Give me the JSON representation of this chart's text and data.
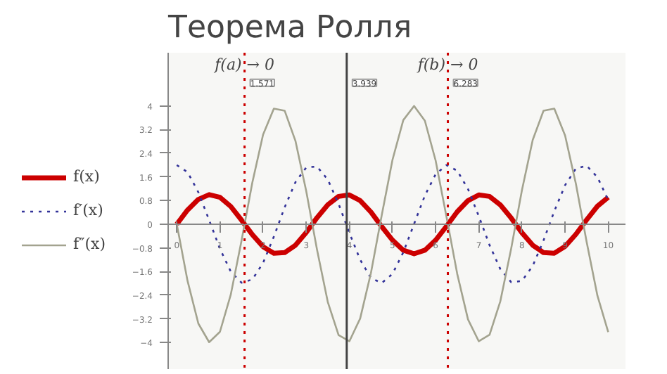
{
  "chart_data": {
    "type": "line",
    "title": "Теорема Ролля",
    "x": [
      0,
      0.25,
      0.5,
      0.75,
      1,
      1.25,
      1.5,
      1.75,
      2,
      2.25,
      2.5,
      2.75,
      3,
      3.25,
      3.5,
      3.75,
      4,
      4.25,
      4.5,
      4.75,
      5,
      5.25,
      5.5,
      5.75,
      6,
      6.25,
      6.5,
      6.75,
      7,
      7.25,
      7.5,
      7.75,
      8,
      8.25,
      8.5,
      8.75,
      9,
      9.25,
      9.5,
      9.75,
      10
    ],
    "series": [
      {
        "name": "f(x)",
        "color": "#cc0000",
        "line_style": "solid",
        "values": [
          0,
          0.48,
          0.84,
          1.0,
          0.91,
          0.6,
          0.14,
          -0.35,
          -0.76,
          -0.98,
          -0.96,
          -0.71,
          -0.28,
          0.22,
          0.66,
          0.94,
          0.99,
          0.8,
          0.41,
          -0.08,
          -0.54,
          -0.88,
          -1.0,
          -0.88,
          -0.54,
          -0.07,
          0.42,
          0.8,
          0.99,
          0.94,
          0.65,
          0.21,
          -0.29,
          -0.71,
          -0.96,
          -0.98,
          -0.75,
          -0.34,
          0.15,
          0.61,
          0.91
        ]
      },
      {
        "name": "f′(x)",
        "color": "#333399",
        "line_style": "dotted",
        "values": [
          2,
          1.76,
          1.08,
          0.14,
          -0.83,
          -1.6,
          -1.98,
          -1.87,
          -1.31,
          -0.42,
          0.57,
          1.42,
          1.92,
          1.95,
          1.51,
          0.69,
          -0.29,
          -1.2,
          -1.82,
          -1.99,
          -1.68,
          -0.95,
          0.01,
          0.97,
          1.69,
          2.0,
          1.81,
          1.19,
          0.27,
          -0.71,
          -1.52,
          -1.96,
          -1.92,
          -1.41,
          -0.55,
          0.44,
          1.32,
          1.88,
          1.98,
          1.59,
          0.82
        ]
      },
      {
        "name": "f″(x)",
        "color": "#a3a38f",
        "line_style": "solid",
        "values": [
          0,
          -1.92,
          -3.36,
          -3.99,
          -3.64,
          -2.39,
          -0.56,
          1.4,
          3.03,
          3.91,
          3.84,
          2.82,
          1.12,
          -0.86,
          -2.63,
          -3.75,
          -3.96,
          -3.19,
          -1.65,
          0.3,
          2.18,
          3.52,
          4.0,
          3.5,
          2.15,
          0.26,
          -1.68,
          -3.22,
          -3.96,
          -3.74,
          -2.6,
          -0.83,
          1.15,
          2.85,
          3.84,
          3.91,
          3.0,
          1.37,
          -0.6,
          -2.42,
          -3.65
        ]
      }
    ],
    "xlim": [
      -0.2,
      10.4
    ],
    "ylim": [
      -4.9,
      5.8
    ],
    "xticks": [
      0,
      1,
      2,
      3,
      4,
      5,
      6,
      7,
      8,
      9,
      10
    ],
    "yticks": [
      -4,
      -3.2,
      -2.4,
      -1.6,
      -0.8,
      0,
      0.8,
      1.6,
      2.4,
      3.2,
      4
    ],
    "ref_lines": [
      {
        "axis": "x",
        "value": 1.571,
        "label": "1.571",
        "color": "#cc0000",
        "line_style": "dotted"
      },
      {
        "axis": "x",
        "value": 3.939,
        "label": "3.939",
        "color": "#444444",
        "line_style": "solid"
      },
      {
        "axis": "x",
        "value": 6.283,
        "label": "6.283",
        "color": "#cc0000",
        "line_style": "dotted"
      }
    ],
    "annotations": [
      {
        "text": "f(a) → 0",
        "x": 1.571,
        "y": 5.4
      },
      {
        "text": "f(b) → 0",
        "x": 6.283,
        "y": 5.4
      }
    ],
    "grid": false,
    "legend": "left"
  }
}
